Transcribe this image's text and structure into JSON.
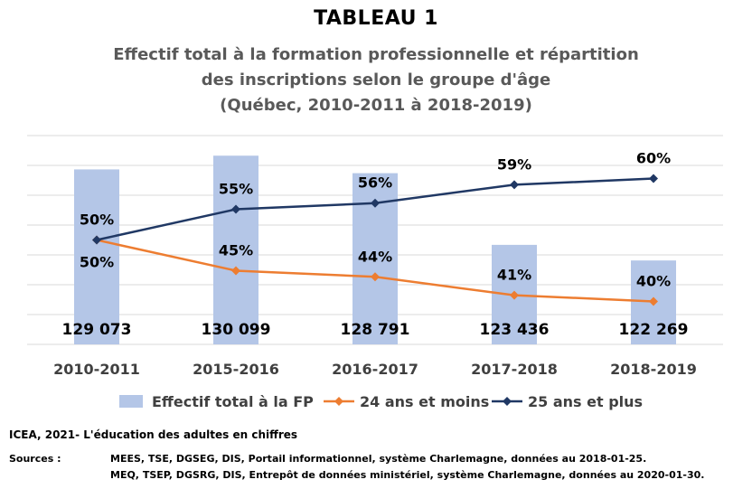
{
  "chart_data": {
    "type": "bar",
    "title": "TABLEAU 1",
    "subtitle_lines": [
      "Effectif total à la formation professionnelle et répartition",
      "des inscriptions selon le groupe d'âge",
      "(Québec, 2010-2011 à 2018-2019)"
    ],
    "categories": [
      "2010-2011",
      "2015-2016",
      "2016-2017",
      "2017-2018",
      "2018-2019"
    ],
    "bar_series": {
      "name": "Effectif total à la FP",
      "values": [
        129073,
        130099,
        128791,
        123436,
        122269
      ],
      "labels": [
        "129 073",
        "130 099",
        "128 791",
        "123 436",
        "122 269"
      ],
      "color": "#b4c6e7",
      "ylim": [
        116000,
        131600
      ]
    },
    "line_series": [
      {
        "name": "24 ans et moins",
        "values": [
          50,
          45,
          44,
          41,
          40
        ],
        "labels": [
          "50%",
          "45%",
          "44%",
          "41%",
          "40%"
        ],
        "color": "#ed7d31",
        "marker": "diamond"
      },
      {
        "name": "25 ans et plus",
        "values": [
          50,
          55,
          56,
          59,
          60
        ],
        "labels": [
          "50%",
          "55%",
          "56%",
          "59%",
          "60%"
        ],
        "color": "#203864",
        "marker": "diamond"
      }
    ],
    "line_ylim": [
      33,
      67
    ],
    "grid": true,
    "legend": "bottom"
  },
  "footer": {
    "credit": "ICEA, 2021- L'éducation des adultes en chiffres",
    "sources_label": "Sources :",
    "source_lines": [
      "MEES, TSE, DGSEG, DIS, Portail informationnel, système Charlemagne, données au 2018-01-25.",
      "MEQ, TSEP, DGSRG, DIS, Entrepôt de données ministériel, système Charlemagne, données au 2020-01-30."
    ]
  }
}
